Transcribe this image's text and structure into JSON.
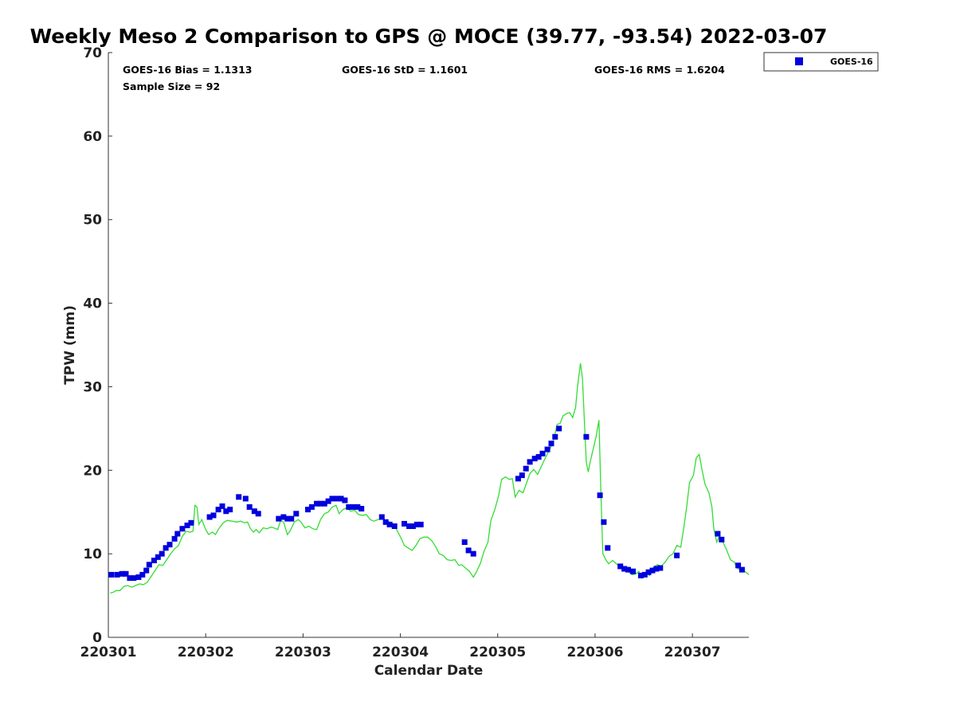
{
  "chart_data": {
    "type": "scatter",
    "title": "Weekly Meso 2 Comparison to GPS @ MOCE (39.77, -93.54) 2022-03-07",
    "xlabel": "Calendar Date",
    "ylabel": "TPW (mm)",
    "xlim": [
      0,
      6.58
    ],
    "ylim": [
      0,
      70
    ],
    "yticks": [
      0,
      10,
      20,
      30,
      40,
      50,
      60,
      70
    ],
    "xticks": [
      {
        "pos": 0,
        "label": "220301"
      },
      {
        "pos": 1,
        "label": "220302"
      },
      {
        "pos": 2,
        "label": "220303"
      },
      {
        "pos": 3,
        "label": "220304"
      },
      {
        "pos": 4,
        "label": "220305"
      },
      {
        "pos": 5,
        "label": "220306"
      },
      {
        "pos": 6,
        "label": "220307"
      }
    ],
    "grid": false,
    "legend": {
      "position": "top-right",
      "entries": [
        "GOES-16"
      ]
    },
    "stats": {
      "bias": "GOES-16 Bias = 1.1313",
      "std": "GOES-16 StD = 1.1601",
      "rms": "GOES-16 RMS = 1.6204",
      "sample": "Sample Size = 92"
    },
    "series": [
      {
        "name": "GOES-16",
        "kind": "scatter",
        "color": "#0000dd",
        "points": [
          [
            0.03,
            7.5
          ],
          [
            0.09,
            7.5
          ],
          [
            0.14,
            7.6
          ],
          [
            0.18,
            7.6
          ],
          [
            0.22,
            7.1
          ],
          [
            0.26,
            7.1
          ],
          [
            0.31,
            7.2
          ],
          [
            0.35,
            7.5
          ],
          [
            0.39,
            8.0
          ],
          [
            0.42,
            8.7
          ],
          [
            0.47,
            9.2
          ],
          [
            0.51,
            9.6
          ],
          [
            0.55,
            10.0
          ],
          [
            0.59,
            10.7
          ],
          [
            0.63,
            11.1
          ],
          [
            0.68,
            11.8
          ],
          [
            0.71,
            12.4
          ],
          [
            0.76,
            13.0
          ],
          [
            0.81,
            13.4
          ],
          [
            0.85,
            13.7
          ],
          [
            1.04,
            14.4
          ],
          [
            1.08,
            14.6
          ],
          [
            1.13,
            15.3
          ],
          [
            1.17,
            15.7
          ],
          [
            1.21,
            15.1
          ],
          [
            1.25,
            15.3
          ],
          [
            1.34,
            16.8
          ],
          [
            1.41,
            16.6
          ],
          [
            1.45,
            15.6
          ],
          [
            1.5,
            15.1
          ],
          [
            1.54,
            14.8
          ],
          [
            1.75,
            14.2
          ],
          [
            1.8,
            14.4
          ],
          [
            1.84,
            14.2
          ],
          [
            1.88,
            14.2
          ],
          [
            1.93,
            14.8
          ],
          [
            2.05,
            15.3
          ],
          [
            2.09,
            15.6
          ],
          [
            2.14,
            16.0
          ],
          [
            2.18,
            16.0
          ],
          [
            2.22,
            16.0
          ],
          [
            2.26,
            16.3
          ],
          [
            2.3,
            16.6
          ],
          [
            2.35,
            16.6
          ],
          [
            2.39,
            16.6
          ],
          [
            2.43,
            16.4
          ],
          [
            2.47,
            15.6
          ],
          [
            2.51,
            15.6
          ],
          [
            2.56,
            15.6
          ],
          [
            2.6,
            15.4
          ],
          [
            2.81,
            14.4
          ],
          [
            2.85,
            13.8
          ],
          [
            2.89,
            13.5
          ],
          [
            2.94,
            13.3
          ],
          [
            3.04,
            13.6
          ],
          [
            3.09,
            13.3
          ],
          [
            3.13,
            13.3
          ],
          [
            3.17,
            13.5
          ],
          [
            3.21,
            13.5
          ],
          [
            3.66,
            11.4
          ],
          [
            3.7,
            10.4
          ],
          [
            3.75,
            10.0
          ],
          [
            4.21,
            19.0
          ],
          [
            4.25,
            19.4
          ],
          [
            4.29,
            20.2
          ],
          [
            4.33,
            21.0
          ],
          [
            4.38,
            21.4
          ],
          [
            4.42,
            21.6
          ],
          [
            4.46,
            22.0
          ],
          [
            4.51,
            22.5
          ],
          [
            4.55,
            23.2
          ],
          [
            4.59,
            24.0
          ],
          [
            4.63,
            25.0
          ],
          [
            4.91,
            24.0
          ],
          [
            5.05,
            17.0
          ],
          [
            5.09,
            13.8
          ],
          [
            5.13,
            10.7
          ],
          [
            5.26,
            8.5
          ],
          [
            5.3,
            8.2
          ],
          [
            5.34,
            8.1
          ],
          [
            5.39,
            7.9
          ],
          [
            5.47,
            7.4
          ],
          [
            5.51,
            7.5
          ],
          [
            5.55,
            7.8
          ],
          [
            5.59,
            8.0
          ],
          [
            5.63,
            8.2
          ],
          [
            5.67,
            8.3
          ],
          [
            5.84,
            9.8
          ],
          [
            6.26,
            12.4
          ],
          [
            6.3,
            11.7
          ],
          [
            6.47,
            8.6
          ],
          [
            6.51,
            8.1
          ]
        ]
      },
      {
        "name": "GPS",
        "kind": "line",
        "color": "#33dd33",
        "points": [
          [
            0.02,
            5.3
          ],
          [
            0.05,
            5.4
          ],
          [
            0.08,
            5.6
          ],
          [
            0.12,
            5.6
          ],
          [
            0.16,
            6.1
          ],
          [
            0.2,
            6.2
          ],
          [
            0.24,
            6.0
          ],
          [
            0.28,
            6.2
          ],
          [
            0.32,
            6.4
          ],
          [
            0.36,
            6.3
          ],
          [
            0.4,
            6.6
          ],
          [
            0.44,
            7.3
          ],
          [
            0.48,
            8.0
          ],
          [
            0.52,
            8.7
          ],
          [
            0.56,
            8.6
          ],
          [
            0.6,
            9.3
          ],
          [
            0.64,
            10.0
          ],
          [
            0.68,
            10.6
          ],
          [
            0.72,
            11.0
          ],
          [
            0.76,
            12.1
          ],
          [
            0.8,
            12.7
          ],
          [
            0.84,
            12.6
          ],
          [
            0.87,
            12.7
          ],
          [
            0.89,
            15.8
          ],
          [
            0.91,
            15.6
          ],
          [
            0.93,
            13.5
          ],
          [
            0.96,
            14.1
          ],
          [
            1.0,
            12.9
          ],
          [
            1.03,
            12.3
          ],
          [
            1.07,
            12.6
          ],
          [
            1.1,
            12.3
          ],
          [
            1.14,
            13.1
          ],
          [
            1.18,
            13.7
          ],
          [
            1.22,
            14.0
          ],
          [
            1.27,
            13.9
          ],
          [
            1.32,
            13.8
          ],
          [
            1.36,
            13.9
          ],
          [
            1.4,
            13.7
          ],
          [
            1.43,
            13.8
          ],
          [
            1.46,
            13.0
          ],
          [
            1.49,
            12.6
          ],
          [
            1.52,
            12.9
          ],
          [
            1.55,
            12.5
          ],
          [
            1.59,
            13.1
          ],
          [
            1.63,
            13.0
          ],
          [
            1.67,
            13.2
          ],
          [
            1.7,
            13.1
          ],
          [
            1.74,
            12.9
          ],
          [
            1.77,
            14.0
          ],
          [
            1.8,
            13.8
          ],
          [
            1.84,
            12.3
          ],
          [
            1.87,
            12.8
          ],
          [
            1.91,
            13.8
          ],
          [
            1.95,
            14.1
          ],
          [
            1.98,
            13.8
          ],
          [
            2.02,
            13.1
          ],
          [
            2.06,
            13.3
          ],
          [
            2.1,
            13.0
          ],
          [
            2.14,
            12.9
          ],
          [
            2.18,
            14.1
          ],
          [
            2.22,
            14.8
          ],
          [
            2.26,
            15.0
          ],
          [
            2.3,
            15.6
          ],
          [
            2.34,
            15.8
          ],
          [
            2.37,
            14.8
          ],
          [
            2.41,
            15.3
          ],
          [
            2.45,
            15.5
          ],
          [
            2.49,
            15.1
          ],
          [
            2.53,
            15.2
          ],
          [
            2.57,
            14.7
          ],
          [
            2.61,
            14.6
          ],
          [
            2.65,
            14.7
          ],
          [
            2.69,
            14.1
          ],
          [
            2.73,
            13.9
          ],
          [
            2.77,
            14.1
          ],
          [
            2.81,
            14.3
          ],
          [
            2.85,
            14.0
          ],
          [
            2.89,
            13.8
          ],
          [
            2.93,
            13.6
          ],
          [
            2.97,
            12.7
          ],
          [
            3.01,
            11.8
          ],
          [
            3.04,
            11.0
          ],
          [
            3.08,
            10.7
          ],
          [
            3.12,
            10.4
          ],
          [
            3.16,
            11.0
          ],
          [
            3.2,
            11.8
          ],
          [
            3.24,
            12.0
          ],
          [
            3.28,
            12.0
          ],
          [
            3.32,
            11.6
          ],
          [
            3.36,
            10.9
          ],
          [
            3.4,
            10.0
          ],
          [
            3.44,
            9.8
          ],
          [
            3.48,
            9.3
          ],
          [
            3.52,
            9.2
          ],
          [
            3.56,
            9.3
          ],
          [
            3.6,
            8.6
          ],
          [
            3.63,
            8.7
          ],
          [
            3.67,
            8.3
          ],
          [
            3.71,
            7.9
          ],
          [
            3.75,
            7.2
          ],
          [
            3.78,
            7.8
          ],
          [
            3.82,
            8.8
          ],
          [
            3.86,
            10.3
          ],
          [
            3.9,
            11.4
          ],
          [
            3.93,
            14.0
          ],
          [
            3.97,
            15.3
          ],
          [
            4.01,
            17.0
          ],
          [
            4.04,
            18.9
          ],
          [
            4.08,
            19.2
          ],
          [
            4.12,
            18.9
          ],
          [
            4.15,
            19.0
          ],
          [
            4.18,
            16.8
          ],
          [
            4.22,
            17.6
          ],
          [
            4.26,
            17.3
          ],
          [
            4.3,
            18.6
          ],
          [
            4.33,
            19.6
          ],
          [
            4.37,
            20.1
          ],
          [
            4.41,
            19.5
          ],
          [
            4.45,
            20.5
          ],
          [
            4.49,
            21.5
          ],
          [
            4.53,
            22.4
          ],
          [
            4.57,
            23.4
          ],
          [
            4.61,
            25.5
          ],
          [
            4.64,
            25.6
          ],
          [
            4.67,
            26.5
          ],
          [
            4.71,
            26.8
          ],
          [
            4.74,
            26.9
          ],
          [
            4.77,
            26.3
          ],
          [
            4.8,
            27.5
          ],
          [
            4.82,
            30.0
          ],
          [
            4.85,
            32.8
          ],
          [
            4.87,
            31.0
          ],
          [
            4.89,
            26.0
          ],
          [
            4.91,
            21.0
          ],
          [
            4.93,
            19.8
          ],
          [
            4.95,
            21.0
          ],
          [
            4.98,
            22.5
          ],
          [
            5.01,
            24.0
          ],
          [
            5.04,
            26.0
          ],
          [
            5.06,
            17.2
          ],
          [
            5.08,
            10.0
          ],
          [
            5.11,
            9.3
          ],
          [
            5.14,
            8.8
          ],
          [
            5.18,
            9.2
          ],
          [
            5.22,
            8.8
          ],
          [
            5.26,
            8.3
          ],
          [
            5.3,
            8.0
          ],
          [
            5.34,
            7.9
          ],
          [
            5.38,
            7.5
          ],
          [
            5.42,
            7.6
          ],
          [
            5.45,
            7.9
          ],
          [
            5.48,
            7.1
          ],
          [
            5.52,
            7.8
          ],
          [
            5.56,
            7.4
          ],
          [
            5.6,
            8.4
          ],
          [
            5.64,
            8.7
          ],
          [
            5.68,
            8.5
          ],
          [
            5.72,
            9.0
          ],
          [
            5.76,
            9.7
          ],
          [
            5.8,
            10.0
          ],
          [
            5.84,
            11.0
          ],
          [
            5.88,
            10.8
          ],
          [
            5.91,
            13.0
          ],
          [
            5.94,
            15.5
          ],
          [
            5.97,
            18.5
          ],
          [
            6.01,
            19.4
          ],
          [
            6.04,
            21.5
          ],
          [
            6.07,
            21.9
          ],
          [
            6.1,
            20.0
          ],
          [
            6.13,
            18.3
          ],
          [
            6.17,
            17.3
          ],
          [
            6.2,
            15.6
          ],
          [
            6.22,
            13.0
          ],
          [
            6.25,
            11.4
          ],
          [
            6.28,
            12.2
          ],
          [
            6.31,
            11.5
          ],
          [
            6.35,
            10.5
          ],
          [
            6.39,
            9.3
          ],
          [
            6.43,
            9.0
          ],
          [
            6.46,
            8.3
          ],
          [
            6.5,
            8.0
          ],
          [
            6.54,
            7.9
          ],
          [
            6.58,
            7.5
          ]
        ]
      }
    ]
  }
}
